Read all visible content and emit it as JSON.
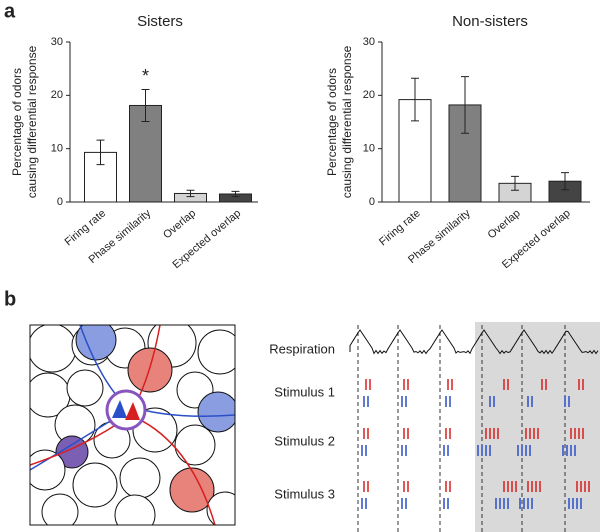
{
  "panel_a_label": "a",
  "chart_data": [
    {
      "type": "bar",
      "title": "Sisters",
      "ylabel": [
        "Percentage of odors",
        "causing differential response"
      ],
      "categories": [
        "Firing rate",
        "Phase similarity",
        "Overlap",
        "Expected overlap"
      ],
      "values": [
        9.3,
        18.1,
        1.6,
        1.5
      ],
      "errors": [
        2.3,
        3.0,
        0.6,
        0.5
      ],
      "colors": [
        "#ffffff",
        "#808080",
        "#d4d4d4",
        "#444444"
      ],
      "annotation": "*",
      "ylim": [
        0,
        30
      ],
      "yticks": [
        0,
        10,
        20,
        30
      ]
    },
    {
      "type": "bar",
      "title": "Non-sisters",
      "ylabel": [
        "Percentage of odors",
        "causing differential response"
      ],
      "categories": [
        "Firing rate",
        "Phase similarity",
        "Overlap",
        "Expected overlap"
      ],
      "values": [
        19.2,
        18.2,
        3.5,
        3.9
      ],
      "errors": [
        4.0,
        5.3,
        1.3,
        1.6
      ],
      "colors": [
        "#ffffff",
        "#808080",
        "#d4d4d4",
        "#444444"
      ],
      "ylim": [
        0,
        30
      ],
      "yticks": [
        0,
        10,
        20,
        30
      ]
    }
  ],
  "panel_b": {
    "label": "b",
    "rows": [
      "Respiration",
      "Stimulus 1",
      "Stimulus 2",
      "Stimulus 3"
    ]
  }
}
